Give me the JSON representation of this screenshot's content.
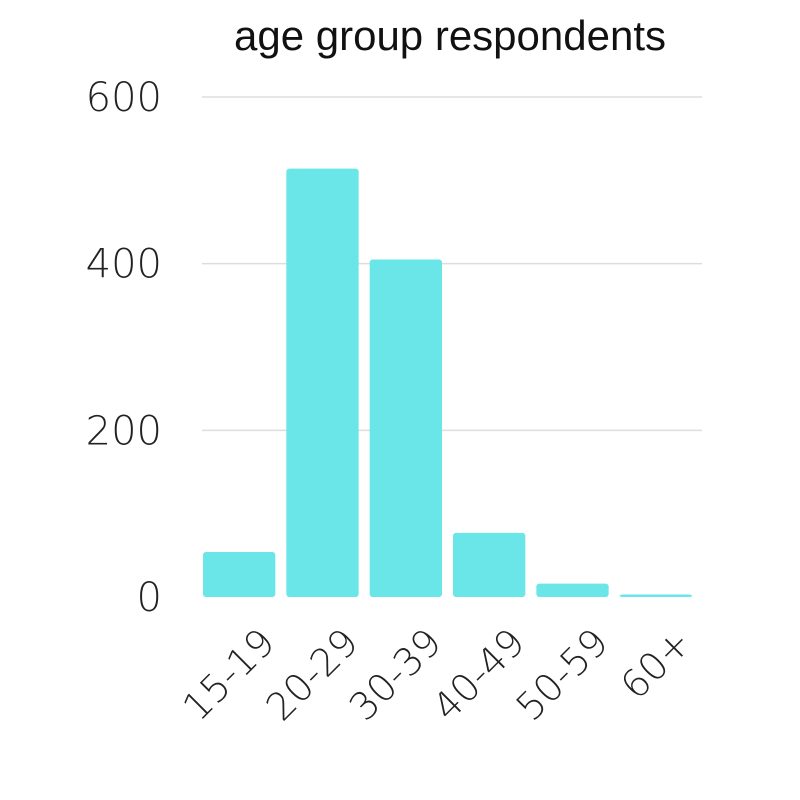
{
  "chart_data": {
    "type": "bar",
    "title": "age group respondents",
    "xlabel": "",
    "ylabel": "",
    "categories": [
      "15-19",
      "20-29",
      "30-39",
      "40-49",
      "50-59",
      "60+"
    ],
    "values": [
      54,
      514,
      405,
      77,
      16,
      3
    ],
    "ylim": [
      0,
      600
    ],
    "yticks": [
      0,
      200,
      400,
      600
    ],
    "grid": true,
    "bar_color": "#6ae5e8",
    "grid_color": "#dddddd"
  }
}
